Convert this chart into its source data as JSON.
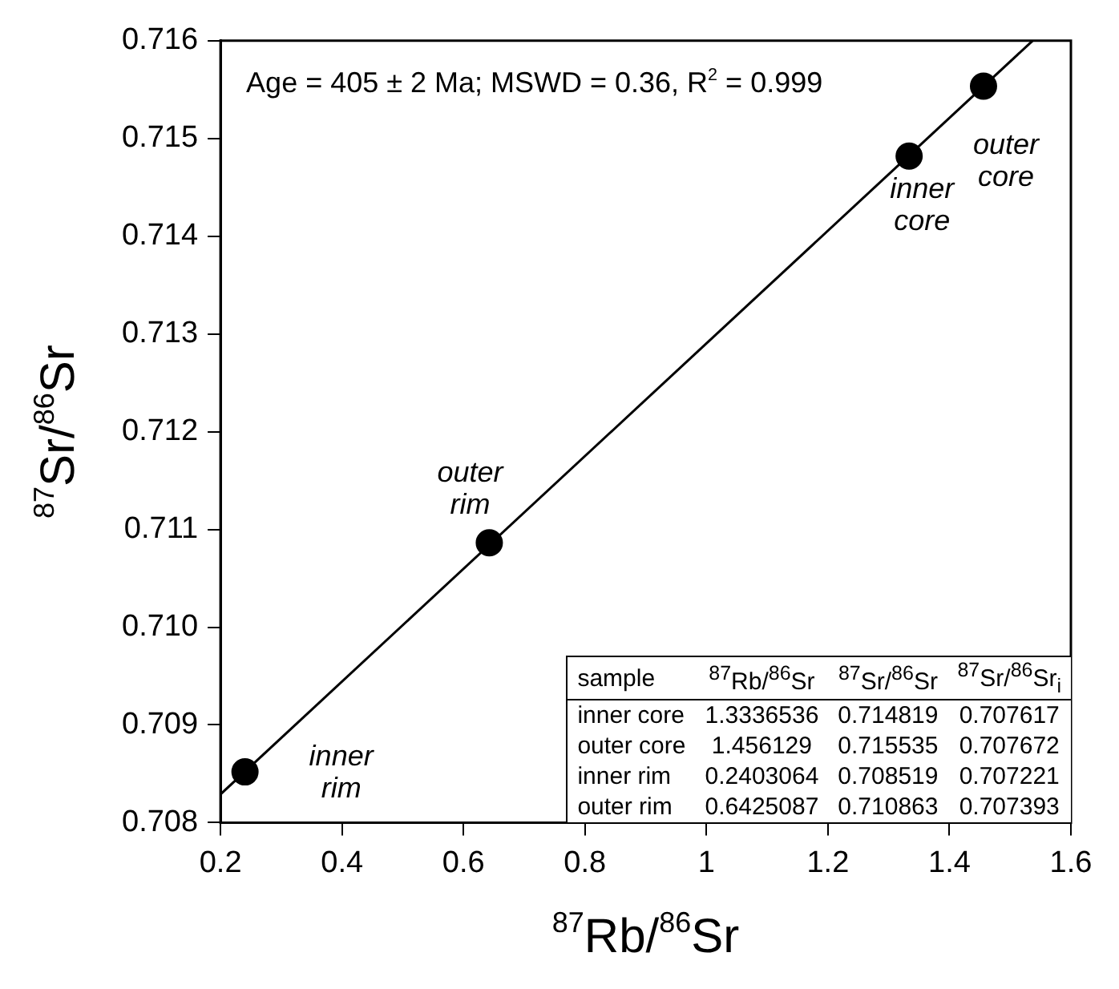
{
  "chart_data": [
    {
      "type": "scatter",
      "xlabel": "$^{87}$Rb/$^{86}$Sr",
      "ylabel": "$^{87}$Sr/$^{86}$Sr",
      "xlim": [
        0.2,
        1.6
      ],
      "xticks": [
        0.2,
        0.4,
        0.6,
        0.8,
        1,
        1.2,
        1.4,
        1.6
      ],
      "ylim": [
        0.708,
        0.716
      ],
      "yticks": [
        0.708,
        0.709,
        {
          "value": 0.71,
          "label": "0.710"
        },
        0.711,
        0.712,
        0.713,
        0.714,
        0.715,
        0.716
      ],
      "grid": false,
      "legend": false,
      "annotations": [
        "Age = 405 ± 2 Ma; MSWD = 0.36, R$^{2}$ = 0.999",
        {
          "text": "inner core",
          "x": 1.3336536,
          "y": 0.714819
        },
        {
          "text": "outer core",
          "x": 1.456129,
          "y": 0.715535
        },
        {
          "text": "inner rim",
          "x": 0.2403064,
          "y": 0.708519
        },
        {
          "text": "outer rim",
          "x": 0.6425087,
          "y": 0.710863
        }
      ],
      "series": [
        {
          "type": "scatter",
          "color": "#000000",
          "marker": "circle",
          "x": [
            1.3336536,
            1.456129,
            0.2403064,
            0.6425087
          ],
          "values": [
            0.714819,
            0.715535,
            0.708519,
            0.710863
          ]
        },
        {
          "type": "line",
          "color": "#000000",
          "marker": "none",
          "line_style": "solid",
          "x": [
            0.2,
            1.537
          ],
          "values": [
            0.70829,
            0.716
          ]
        }
      ]
    },
    {
      "type": "other",
      "categories": [
        "sample",
        "$^{87}$Rb/$^{86}$Sr",
        "$^{87}$Sr/$^{86}$Sr",
        "$^{87}$Sr/$^{86}$Sr$_{i}$"
      ],
      "y_categories": [
        "inner core",
        "outer core",
        "inner rim",
        "outer rim"
      ],
      "cell_labels": [
        [
          "1.3336536",
          "0.714819",
          "0.707617"
        ],
        [
          "1.456129",
          "0.715535",
          "0.707672"
        ],
        [
          "0.2403064",
          "0.708519",
          "0.707221"
        ],
        [
          "0.6425087",
          "0.710863",
          "0.707393"
        ]
      ]
    }
  ]
}
